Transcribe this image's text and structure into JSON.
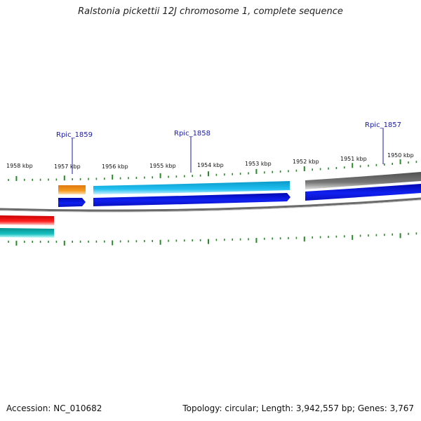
{
  "title": "Ralstonia pickettii 12J chromosome 1, complete sequence",
  "footer": {
    "accession": "Accession: NC_010682",
    "summary": "Topology: circular; Length: 3,942,557 bp; Genes: 3,767"
  },
  "ruler_labels": [
    "1958 kbp",
    "1957 kbp",
    "1956 kbp",
    "1955 kbp",
    "1954 kbp",
    "1953 kbp",
    "1952 kbp",
    "1951 kbp",
    "1950 kbp"
  ],
  "gene_labels": [
    "Rpic_1859",
    "Rpic_1858",
    "Rpic_1857"
  ],
  "colors": {
    "ticks": "#2a8a2a",
    "backbone": "#777777",
    "gene_label": "#1a1aa8",
    "orange": "#f08a10",
    "cyan": "#1ab8e8",
    "blue": "#0a14e0",
    "gray": "#606060",
    "red": "#e81010",
    "teal": "#10b0b0"
  }
}
